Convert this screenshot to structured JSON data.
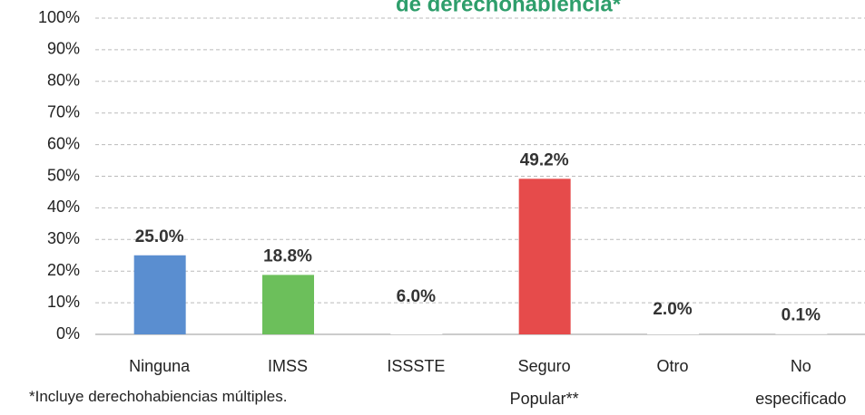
{
  "chart_data": {
    "type": "bar",
    "title": "de derechohabiencia*",
    "categories": [
      "Ninguna",
      "IMSS",
      "ISSSTE",
      "Seguro Popular**",
      "Otro",
      "No especificado"
    ],
    "values": [
      25.0,
      18.8,
      6.0,
      49.2,
      2.0,
      0.1
    ],
    "value_labels": [
      "25.0%",
      "18.8%",
      "6.0%",
      "49.2%",
      "2.0%",
      "0.1%"
    ],
    "colors": [
      "#5a8ed0",
      "#6cbf5b",
      "#ffffff",
      "#e64b4b",
      "#ffffff",
      "#ffffff"
    ],
    "ylim": [
      0,
      100
    ],
    "yticks": [
      {
        "value": 0,
        "label": "0%"
      },
      {
        "value": 10,
        "label": "10%"
      },
      {
        "value": 20,
        "label": "20%"
      },
      {
        "value": 30,
        "label": "30%"
      },
      {
        "value": 40,
        "label": "40%"
      },
      {
        "value": 50,
        "label": "50%"
      },
      {
        "value": 60,
        "label": "60%"
      },
      {
        "value": 70,
        "label": "70%"
      },
      {
        "value": 80,
        "label": "80%"
      },
      {
        "value": 90,
        "label": "90%"
      },
      {
        "value": 100,
        "label": "100%"
      }
    ],
    "grid": true,
    "footnote": "*Incluye derechohabiencias múltiples."
  }
}
